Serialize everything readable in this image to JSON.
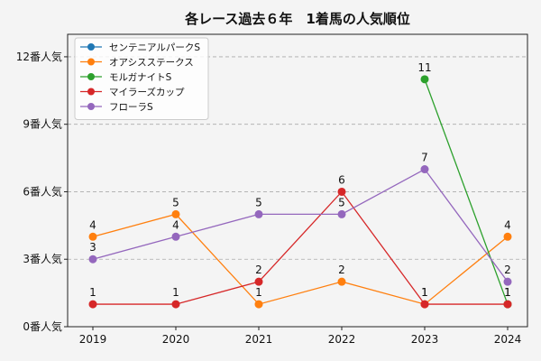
{
  "chart_data": {
    "type": "line",
    "title": "各レース過去６年　1着馬の人気順位",
    "xlabel": "",
    "ylabel": "",
    "categories": [
      "2019",
      "2020",
      "2021",
      "2022",
      "2023",
      "2024"
    ],
    "ylim": [
      0,
      13
    ],
    "yticks": [
      0,
      3,
      6,
      9,
      12
    ],
    "ytick_labels": [
      "0番人気",
      "3番人気",
      "6番人気",
      "9番人気",
      "12番人気"
    ],
    "grid": "horizontal-dashed",
    "legend_position": "top-left",
    "series": [
      {
        "name": "センテニアルパークS",
        "color": "#1f77b4",
        "values": [
          null,
          null,
          null,
          null,
          null,
          null
        ]
      },
      {
        "name": "オアシスステークス",
        "color": "#ff7f0e",
        "values": [
          4,
          5,
          1,
          2,
          1,
          4
        ]
      },
      {
        "name": "モルガナイトS",
        "color": "#2ca02c",
        "values": [
          null,
          null,
          null,
          null,
          11,
          1
        ]
      },
      {
        "name": "マイラーズカップ",
        "color": "#d62728",
        "values": [
          1,
          1,
          2,
          6,
          1,
          1
        ]
      },
      {
        "name": "フローラS",
        "color": "#9467bd",
        "values": [
          3,
          4,
          5,
          5,
          7,
          2
        ]
      }
    ]
  }
}
